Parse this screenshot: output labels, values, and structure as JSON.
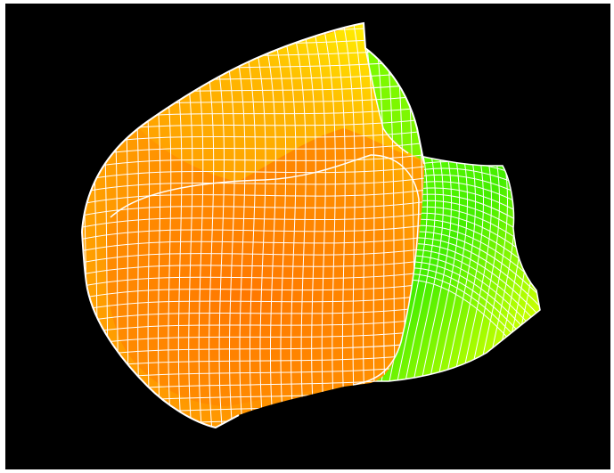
{
  "scene": {
    "background_color": "#000000",
    "page_background_color": "#ffffff",
    "mesh_line_color": "#ffffff",
    "surface_colors": {
      "primary": "#ff8a00",
      "secondary": "#ffb000",
      "highlight": "#ffff00",
      "accent": "#33ee00"
    }
  }
}
